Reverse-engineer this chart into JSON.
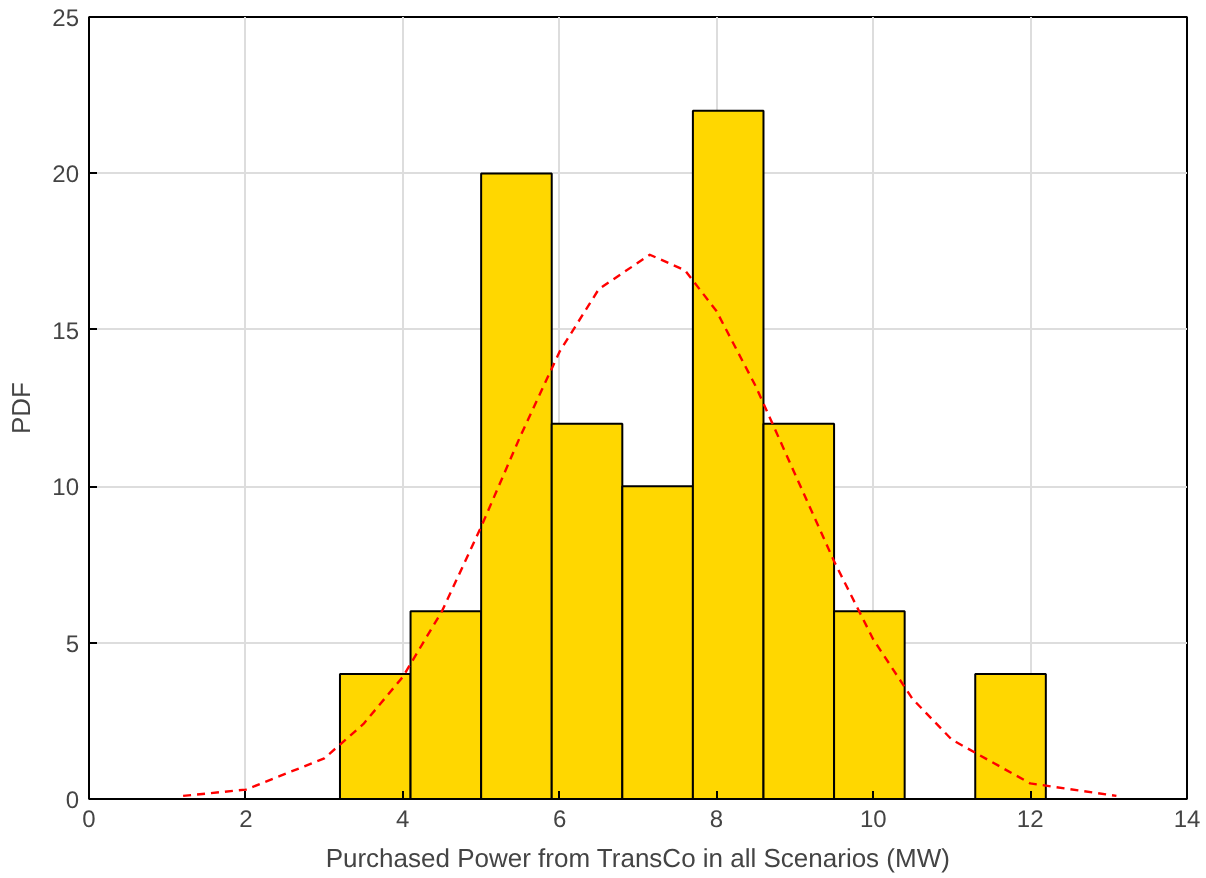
{
  "chart_data": {
    "type": "histogram",
    "xlabel": "Purchased Power from TransCo in all Scenarios (MW)",
    "ylabel": "PDF",
    "bins": [
      3.2,
      4.1,
      5.0,
      5.9,
      6.8,
      7.7,
      8.6,
      9.5,
      10.4,
      11.3,
      12.2
    ],
    "values": [
      4,
      6,
      20,
      12,
      10,
      22,
      12,
      6,
      0,
      4
    ],
    "color": "#ffd700",
    "series": [
      {
        "type": "line",
        "color": "#ff0000",
        "line_style": "dashed",
        "x": [
          1.2,
          2,
          3,
          3.5,
          4,
          4.5,
          5,
          5.5,
          6,
          6.5,
          7.15,
          7.6,
          8,
          8.5,
          9,
          9.5,
          10,
          10.5,
          11,
          12,
          13.1
        ],
        "values": [
          0.1,
          0.3,
          1.3,
          2.4,
          3.9,
          6.0,
          8.7,
          11.6,
          14.3,
          16.3,
          17.4,
          16.9,
          15.6,
          13.2,
          10.4,
          7.6,
          5.1,
          3.2,
          1.9,
          0.5,
          0.1
        ]
      }
    ],
    "xlim": [
      0,
      14
    ],
    "xticks": [
      0,
      2,
      4,
      6,
      8,
      10,
      12,
      14
    ],
    "ylim": [
      0,
      25
    ],
    "yticks": [
      0,
      5,
      10,
      15,
      20,
      25
    ],
    "grid": true
  }
}
